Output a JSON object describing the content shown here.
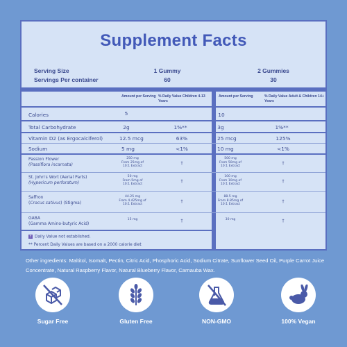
{
  "title": "Supplement Facts",
  "serving": {
    "size_label": "Serving Size",
    "servings_label": "Servings Per container",
    "kids_size": "1 Gummy",
    "kids_servings": "60",
    "adult_size": "2 Gummies",
    "adult_servings": "30"
  },
  "columns": {
    "kids_amount": "Amount per Serving",
    "kids_dv": "% Daily Value Children 4-13 Years",
    "adult_amount": "Amount per Serving",
    "adult_dv": "% Daily Value Adult & Children 14+ Years"
  },
  "rows": [
    {
      "name": "Calories",
      "kid_amt": "5",
      "kid_dv": "",
      "adult_amt": "10",
      "adult_dv": ""
    },
    {
      "name": "Total Carbohydrate",
      "kid_amt": "2g",
      "kid_dv": "1%**",
      "adult_amt": "3g",
      "adult_dv": "1%**"
    },
    {
      "name": "Vitamin D2 (as Ergocalciferol)",
      "kid_amt": "12.5 mcg",
      "kid_dv": "63%",
      "adult_amt": "25 mcg",
      "adult_dv": "125%"
    },
    {
      "name": "Sodium",
      "kid_amt": "5 mg",
      "kid_dv": "<1%",
      "adult_amt": "10 mg",
      "adult_dv": "<1%"
    },
    {
      "name": "Passion Flower",
      "name2": "(Passiflora incarnata)",
      "kid_amt": "250 mg",
      "kid_amt2": "From 25mg of",
      "kid_amt3": "10:1 Extract",
      "kid_dv": "†",
      "adult_amt": "500 mg",
      "adult_amt2": "From 50mg of",
      "adult_amt3": "10:1 Extract",
      "adult_dv": "†"
    },
    {
      "name": "St. John's Wort (Aerial Parts)",
      "name2": "(Hypericum perforatum)",
      "kid_amt": "50 mg",
      "kid_amt2": "From 5mg of",
      "kid_amt3": "10:1 Extract",
      "kid_dv": "†",
      "adult_amt": "100 mg",
      "adult_amt2": "From 10mg of",
      "adult_amt3": "10:1 Extract",
      "adult_dv": "†"
    },
    {
      "name": "Saffron",
      "name2": "(Crocus sativus) (Stigma)",
      "kid_amt": "44.25 mg",
      "kid_amt2": "From 4.425mg of",
      "kid_amt3": "10:1 Extract",
      "kid_dv": "†",
      "adult_amt": "88.5 mg",
      "adult_amt2": "From 8.85mg of",
      "adult_amt3": "10:1 Extract",
      "adult_dv": "†"
    },
    {
      "name": "GABA",
      "name2": "(Gamma Amino-butyric Acid)",
      "kid_amt": "15 mg",
      "kid_dv": "†",
      "adult_amt": "30 mg",
      "adult_dv": "†"
    }
  ],
  "footnotes": {
    "dagger": "Daily Value not established.",
    "percent": "** Percent Daily Values are based on a 2000 calorie diet"
  },
  "ingredients": "Other ingredients: Maltitol, Isomalt, Pectin, Citric Acid, Phosphoric Acid, Sodium Citrate, Sunflower Seed Oil, Purple Carrot Juice Concentrate, Natural Raspberry Flavor, Natural Blueberry Flavor, Carnauba Wax.",
  "badges": [
    {
      "label": "Sugar Free",
      "icon": "sugar-cubes-crossed-icon"
    },
    {
      "label": "Gluten Free",
      "icon": "wheat-icon"
    },
    {
      "label": "NON-GMO",
      "icon": "flask-crossed-icon"
    },
    {
      "label": "100% Vegan",
      "icon": "rabbit-icon"
    }
  ],
  "colors": {
    "background": "#6f99d2",
    "panel": "#d6e3f6",
    "accent": "#4259b8",
    "border": "#5a6fc0"
  }
}
